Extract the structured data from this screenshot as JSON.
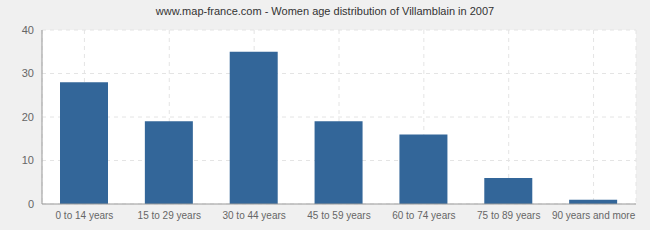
{
  "chart_data": {
    "type": "bar",
    "title": "www.map-france.com - Women age distribution of Villamblain in 2007",
    "categories": [
      "0 to 14 years",
      "15 to 29 years",
      "30 to 44 years",
      "45 to 59 years",
      "60 to 74 years",
      "75 to 89 years",
      "90 years and more"
    ],
    "values": [
      28,
      19,
      35,
      19,
      16,
      6,
      1
    ],
    "color": "#336699",
    "ylim": [
      0,
      40
    ],
    "yticks": [
      0,
      10,
      20,
      30,
      40
    ],
    "grid": true
  }
}
